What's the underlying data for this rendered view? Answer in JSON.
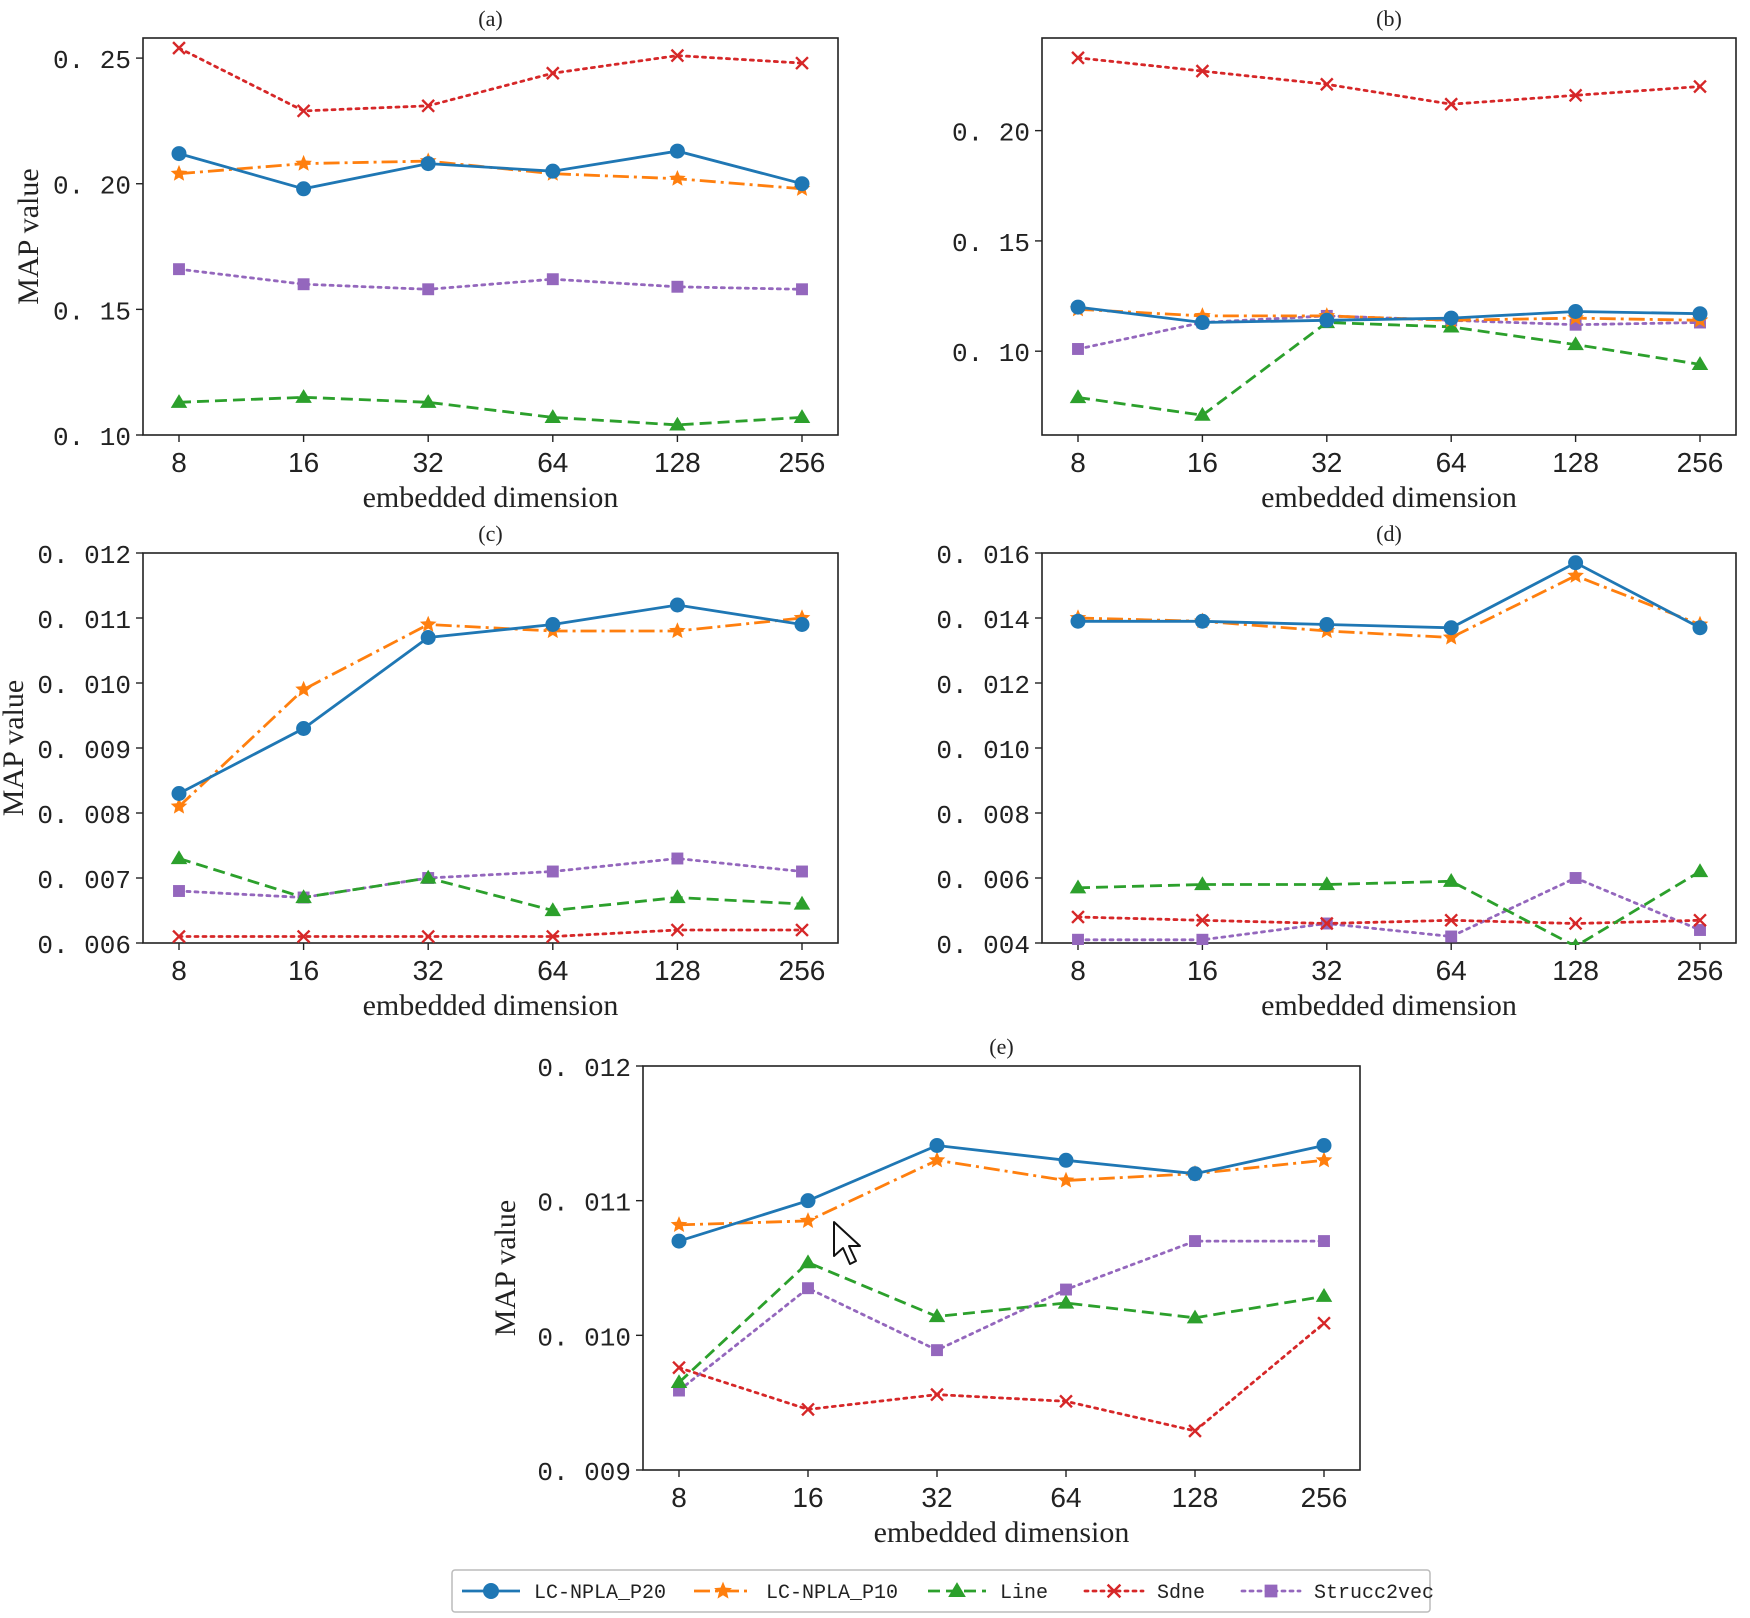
{
  "chart_data": [
    {
      "type": "line",
      "panel_label": "(a)",
      "xlabel": "embedded dimension",
      "ylabel": "MAP value",
      "x_categories": [
        "8",
        "16",
        "32",
        "64",
        "128",
        "256"
      ],
      "ylim": [
        0.1,
        0.258
      ],
      "yticks": [
        0.1,
        0.15,
        0.2,
        0.25
      ],
      "ytick_labels": [
        "0. 10",
        "0. 15",
        "0. 20",
        "0. 25"
      ],
      "series": [
        {
          "name": "LC-NPLA_P20",
          "values": [
            0.212,
            0.198,
            0.208,
            0.205,
            0.213,
            0.2
          ]
        },
        {
          "name": "LC-NPLA_P10",
          "values": [
            0.204,
            0.208,
            0.209,
            0.204,
            0.202,
            0.198
          ]
        },
        {
          "name": "Line",
          "values": [
            0.113,
            0.115,
            0.113,
            0.107,
            0.104,
            0.107
          ]
        },
        {
          "name": "Sdne",
          "values": [
            0.254,
            0.229,
            0.231,
            0.244,
            0.251,
            0.248
          ]
        },
        {
          "name": "Strucc2vec",
          "values": [
            0.166,
            0.16,
            0.158,
            0.162,
            0.159,
            0.158
          ]
        }
      ]
    },
    {
      "type": "line",
      "panel_label": "(b)",
      "xlabel": "embedded dimension",
      "ylabel": "",
      "x_categories": [
        "8",
        "16",
        "32",
        "64",
        "128",
        "256"
      ],
      "ylim": [
        0.062,
        0.242
      ],
      "yticks": [
        0.1,
        0.15,
        0.2
      ],
      "ytick_labels": [
        "0. 10",
        "0. 15",
        "0. 20"
      ],
      "series": [
        {
          "name": "LC-NPLA_P20",
          "values": [
            0.12,
            0.113,
            0.114,
            0.115,
            0.118,
            0.117
          ]
        },
        {
          "name": "LC-NPLA_P10",
          "values": [
            0.119,
            0.116,
            0.116,
            0.114,
            0.115,
            0.114
          ]
        },
        {
          "name": "Line",
          "values": [
            0.079,
            0.071,
            0.113,
            0.111,
            0.103,
            0.094
          ]
        },
        {
          "name": "Sdne",
          "values": [
            0.233,
            0.227,
            0.221,
            0.212,
            0.216,
            0.22
          ]
        },
        {
          "name": "Strucc2vec",
          "values": [
            0.101,
            0.113,
            0.116,
            0.114,
            0.112,
            0.113
          ]
        }
      ]
    },
    {
      "type": "line",
      "panel_label": "(c)",
      "xlabel": "embedded dimension",
      "ylabel": "MAP value",
      "x_categories": [
        "8",
        "16",
        "32",
        "64",
        "128",
        "256"
      ],
      "ylim": [
        0.006,
        0.012
      ],
      "yticks": [
        0.006,
        0.007,
        0.008,
        0.009,
        0.01,
        0.011,
        0.012
      ],
      "ytick_labels": [
        "0. 006",
        "0. 007",
        "0. 008",
        "0. 009",
        "0. 010",
        "0. 011",
        "0. 012"
      ],
      "series": [
        {
          "name": "LC-NPLA_P20",
          "values": [
            0.0083,
            0.0093,
            0.0107,
            0.0109,
            0.0112,
            0.0109
          ]
        },
        {
          "name": "LC-NPLA_P10",
          "values": [
            0.0081,
            0.0099,
            0.0109,
            0.0108,
            0.0108,
            0.011
          ]
        },
        {
          "name": "Line",
          "values": [
            0.0073,
            0.0067,
            0.007,
            0.0065,
            0.0067,
            0.0066
          ]
        },
        {
          "name": "Sdne",
          "values": [
            0.0061,
            0.0061,
            0.0061,
            0.0061,
            0.0062,
            0.0062
          ]
        },
        {
          "name": "Strucc2vec",
          "values": [
            0.0068,
            0.0067,
            0.007,
            0.0071,
            0.0073,
            0.0071
          ]
        }
      ]
    },
    {
      "type": "line",
      "panel_label": "(d)",
      "xlabel": "embedded dimension",
      "ylabel": "",
      "x_categories": [
        "8",
        "16",
        "32",
        "64",
        "128",
        "256"
      ],
      "ylim": [
        0.004,
        0.016
      ],
      "yticks": [
        0.004,
        0.006,
        0.008,
        0.01,
        0.012,
        0.014,
        0.016
      ],
      "ytick_labels": [
        "0. 004",
        "0. 006",
        "0. 008",
        "0. 010",
        "0. 012",
        "0. 014",
        "0. 016"
      ],
      "series": [
        {
          "name": "LC-NPLA_P20",
          "values": [
            0.0139,
            0.0139,
            0.0138,
            0.0137,
            0.0157,
            0.0137
          ]
        },
        {
          "name": "LC-NPLA_P10",
          "values": [
            0.014,
            0.0139,
            0.0136,
            0.0134,
            0.0153,
            0.0138
          ]
        },
        {
          "name": "Line",
          "values": [
            0.0057,
            0.0058,
            0.0058,
            0.0059,
            0.0039,
            0.0062
          ]
        },
        {
          "name": "Sdne",
          "values": [
            0.0048,
            0.0047,
            0.0046,
            0.0047,
            0.0046,
            0.0047
          ]
        },
        {
          "name": "Strucc2vec",
          "values": [
            0.0041,
            0.0041,
            0.0046,
            0.0042,
            0.006,
            0.0044
          ]
        }
      ]
    },
    {
      "type": "line",
      "panel_label": "(e)",
      "xlabel": "embedded dimension",
      "ylabel": "MAP value",
      "x_categories": [
        "8",
        "16",
        "32",
        "64",
        "128",
        "256"
      ],
      "ylim": [
        0.009,
        0.012
      ],
      "yticks": [
        0.009,
        0.01,
        0.011,
        0.012
      ],
      "ytick_labels": [
        "0. 009",
        "0. 010",
        "0. 011",
        "0. 012"
      ],
      "series": [
        {
          "name": "LC-NPLA_P20",
          "values": [
            0.0107,
            0.011,
            0.01141,
            0.0113,
            0.0112,
            0.01141
          ]
        },
        {
          "name": "LC-NPLA_P10",
          "values": [
            0.01082,
            0.01085,
            0.0113,
            0.01115,
            0.0112,
            0.0113
          ]
        },
        {
          "name": "Line",
          "values": [
            0.00965,
            0.01054,
            0.01014,
            0.01024,
            0.01013,
            0.01029
          ]
        },
        {
          "name": "Sdne",
          "values": [
            0.00976,
            0.00945,
            0.00956,
            0.00951,
            0.00929,
            0.01009
          ]
        },
        {
          "name": "Strucc2vec",
          "values": [
            0.00959,
            0.01035,
            0.00989,
            0.01034,
            0.0107,
            0.0107
          ]
        }
      ]
    }
  ],
  "legend": {
    "placement": "bottom-center",
    "items": [
      "LC-NPLA_P20",
      "LC-NPLA_P10",
      "Line",
      "Sdne",
      "Strucc2vec"
    ]
  },
  "series_styles": [
    {
      "name": "LC-NPLA_P20",
      "color": "#1f77b4",
      "dash": "solid",
      "marker": "circle"
    },
    {
      "name": "LC-NPLA_P10",
      "color": "#ff7f0e",
      "dash": "dashdot",
      "marker": "star"
    },
    {
      "name": "Line",
      "color": "#2ca02c",
      "dash": "dashed",
      "marker": "triangle"
    },
    {
      "name": "Sdne",
      "color": "#d62728",
      "dash": "dotted",
      "marker": "x"
    },
    {
      "name": "Strucc2vec",
      "color": "#9467bd",
      "dash": "dotted",
      "marker": "square"
    }
  ]
}
